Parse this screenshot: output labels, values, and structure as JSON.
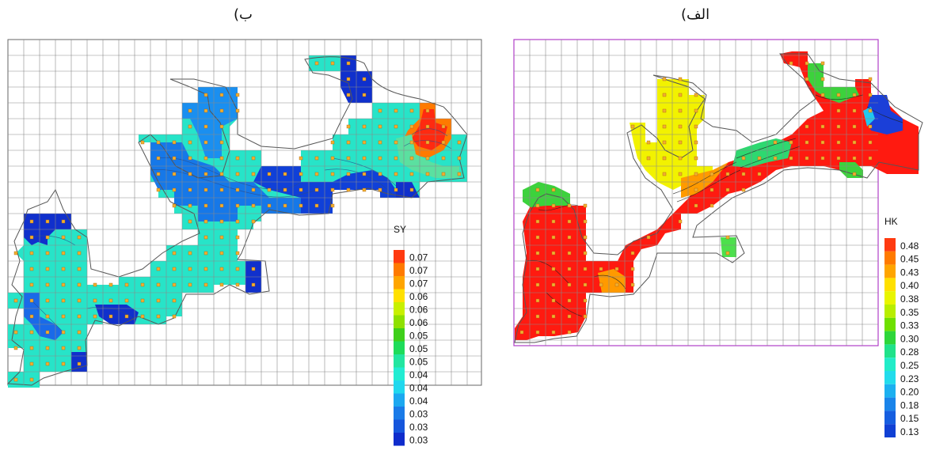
{
  "captions": {
    "left": "ب)",
    "right": "الف)"
  },
  "legend_left": {
    "title": "SY",
    "labels": [
      "0.07",
      "0.07",
      "0.07",
      "0.06",
      "0.06",
      "0.06",
      "0.05",
      "0.05",
      "0.05",
      "0.04",
      "0.04",
      "0.04",
      "0.03",
      "0.03",
      "0.03"
    ],
    "colors": [
      "#ff3a10",
      "#ff7a00",
      "#ffa500",
      "#ffe000",
      "#c8f000",
      "#8ee000",
      "#3ecf1a",
      "#1edc5a",
      "#22e6a0",
      "#22ecd2",
      "#20d8ee",
      "#1ca8f0",
      "#1a7be8",
      "#1656dc",
      "#0f2ccc"
    ]
  },
  "legend_right": {
    "title": "HK",
    "labels": [
      "0.48",
      "0.45",
      "0.43",
      "0.40",
      "0.38",
      "0.35",
      "0.33",
      "0.30",
      "0.28",
      "0.25",
      "0.23",
      "0.20",
      "0.18",
      "0.15",
      "0.13"
    ],
    "colors": [
      "#ff3a10",
      "#ff7a00",
      "#ffa500",
      "#ffe000",
      "#e8f500",
      "#b8ee00",
      "#6ee000",
      "#2ed63a",
      "#20e28a",
      "#22ecc8",
      "#22dcec",
      "#1cb0f0",
      "#1a84ea",
      "#165ee0",
      "#1040d4"
    ]
  }
}
